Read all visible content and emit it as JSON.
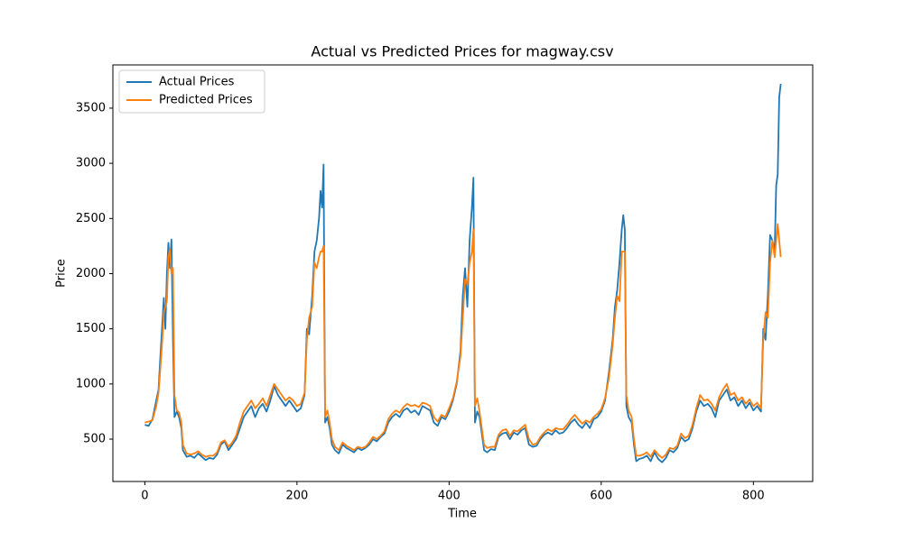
{
  "chart_data": {
    "type": "line",
    "title": "Actual vs Predicted Prices for magway.csv",
    "x_label": "Time",
    "y_label": "Price",
    "xlim": [
      -42,
      878
    ],
    "ylim": [
      116,
      3892
    ],
    "xticks": [
      0,
      200,
      400,
      600,
      800
    ],
    "yticks": [
      500,
      1000,
      1500,
      2000,
      2500,
      3000,
      3500
    ],
    "legend": "upper left",
    "x": [
      0,
      5,
      10,
      15,
      18,
      20,
      23,
      25,
      27,
      29,
      31,
      33,
      35,
      37,
      39,
      42,
      45,
      48,
      50,
      55,
      60,
      65,
      70,
      75,
      80,
      85,
      90,
      95,
      100,
      105,
      110,
      115,
      120,
      125,
      130,
      135,
      140,
      145,
      150,
      155,
      160,
      165,
      170,
      175,
      180,
      185,
      190,
      195,
      200,
      205,
      210,
      213,
      216,
      220,
      223,
      226,
      229,
      231,
      233,
      235,
      237,
      240,
      243,
      246,
      250,
      255,
      260,
      265,
      270,
      275,
      280,
      285,
      290,
      295,
      300,
      305,
      310,
      315,
      320,
      325,
      330,
      335,
      340,
      345,
      350,
      355,
      360,
      365,
      370,
      375,
      380,
      385,
      390,
      395,
      400,
      405,
      410,
      415,
      418,
      421,
      424,
      427,
      430,
      432,
      434,
      437,
      440,
      443,
      446,
      450,
      455,
      460,
      465,
      470,
      475,
      480,
      485,
      490,
      495,
      500,
      505,
      510,
      515,
      520,
      525,
      530,
      535,
      540,
      545,
      550,
      555,
      560,
      565,
      570,
      575,
      580,
      585,
      590,
      595,
      600,
      605,
      610,
      615,
      618,
      621,
      624,
      627,
      629,
      631,
      633,
      636,
      640,
      643,
      646,
      650,
      655,
      660,
      665,
      670,
      675,
      680,
      685,
      690,
      695,
      700,
      705,
      710,
      715,
      720,
      725,
      730,
      735,
      740,
      745,
      750,
      755,
      760,
      765,
      770,
      775,
      780,
      785,
      790,
      795,
      800,
      805,
      810,
      813,
      816,
      819,
      822,
      825,
      828,
      830,
      832,
      834,
      836
    ],
    "series": [
      {
        "name": "Actual Prices",
        "color": "#1f77b4",
        "values": [
          630,
          620,
          680,
          850,
          950,
          1200,
          1550,
          1780,
          1500,
          2000,
          2280,
          2050,
          2310,
          1400,
          700,
          750,
          700,
          600,
          400,
          340,
          350,
          330,
          370,
          340,
          310,
          330,
          320,
          360,
          450,
          480,
          400,
          450,
          500,
          600,
          700,
          750,
          800,
          700,
          780,
          820,
          750,
          850,
          980,
          900,
          850,
          800,
          850,
          800,
          750,
          780,
          900,
          1500,
          1450,
          1800,
          2200,
          2300,
          2500,
          2750,
          2600,
          2990,
          650,
          700,
          600,
          450,
          400,
          370,
          450,
          420,
          400,
          380,
          420,
          400,
          420,
          450,
          500,
          480,
          520,
          550,
          650,
          700,
          730,
          700,
          760,
          780,
          740,
          760,
          720,
          800,
          780,
          760,
          650,
          620,
          700,
          680,
          750,
          850,
          1000,
          1300,
          1800,
          2050,
          1700,
          2300,
          2600,
          2870,
          650,
          750,
          700,
          550,
          400,
          380,
          410,
          400,
          520,
          550,
          560,
          500,
          560,
          540,
          580,
          600,
          450,
          430,
          440,
          500,
          540,
          560,
          540,
          580,
          550,
          560,
          600,
          650,
          680,
          630,
          600,
          650,
          600,
          680,
          700,
          750,
          850,
          1100,
          1400,
          1700,
          1850,
          2100,
          2400,
          2530,
          2400,
          800,
          700,
          650,
          450,
          300,
          320,
          330,
          350,
          300,
          380,
          320,
          290,
          330,
          400,
          380,
          420,
          520,
          480,
          500,
          600,
          750,
          850,
          800,
          820,
          780,
          700,
          850,
          900,
          950,
          850,
          880,
          800,
          850,
          780,
          830,
          760,
          800,
          750,
          1500,
          1400,
          1800,
          2350,
          2300,
          2200,
          2800,
          2900,
          3600,
          3720
        ]
      },
      {
        "name": "Predicted Prices",
        "color": "#ff7f0e",
        "values": [
          650,
          660,
          670,
          800,
          920,
          1100,
          1400,
          1650,
          1700,
          1750,
          2150,
          2220,
          2000,
          2050,
          900,
          760,
          740,
          650,
          450,
          370,
          360,
          370,
          390,
          360,
          340,
          350,
          350,
          380,
          470,
          490,
          430,
          470,
          530,
          650,
          750,
          800,
          850,
          780,
          820,
          870,
          800,
          900,
          1000,
          950,
          900,
          850,
          880,
          850,
          800,
          820,
          920,
          1400,
          1600,
          1700,
          2100,
          2050,
          2150,
          2200,
          2200,
          2250,
          700,
          760,
          650,
          500,
          430,
          400,
          470,
          440,
          420,
          400,
          430,
          420,
          430,
          470,
          520,
          500,
          530,
          570,
          680,
          730,
          760,
          740,
          790,
          820,
          800,
          810,
          790,
          830,
          820,
          800,
          700,
          660,
          720,
          700,
          780,
          870,
          1020,
          1250,
          1600,
          1950,
          1900,
          2100,
          2200,
          2400,
          800,
          870,
          750,
          600,
          450,
          420,
          430,
          430,
          540,
          580,
          590,
          530,
          580,
          570,
          600,
          630,
          500,
          450,
          460,
          520,
          560,
          590,
          570,
          600,
          590,
          590,
          630,
          680,
          720,
          680,
          640,
          670,
          650,
          700,
          730,
          770,
          870,
          1050,
          1350,
          1600,
          1800,
          1750,
          2200,
          2200,
          2200,
          900,
          760,
          700,
          500,
          350,
          350,
          360,
          380,
          340,
          400,
          360,
          330,
          360,
          420,
          410,
          440,
          550,
          510,
          530,
          630,
          780,
          900,
          850,
          860,
          820,
          760,
          880,
          950,
          1000,
          900,
          920,
          850,
          880,
          820,
          860,
          800,
          830,
          780,
          1400,
          1650,
          1600,
          2100,
          2300,
          2150,
          2300,
          2450,
          2300,
          2150
        ]
      }
    ]
  }
}
